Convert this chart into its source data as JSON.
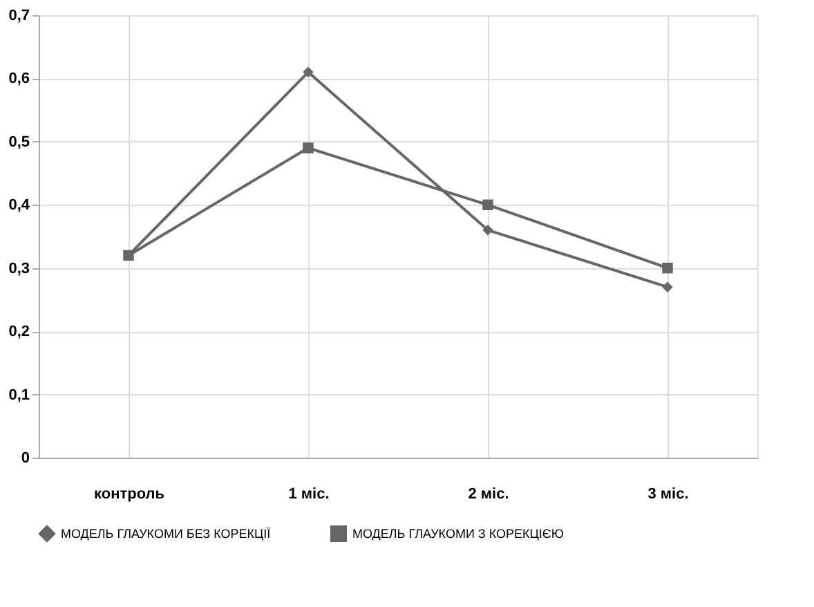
{
  "chart_data": {
    "type": "line",
    "categories": [
      "контроль",
      "1 міс.",
      "2 міс.",
      "3 міс."
    ],
    "series": [
      {
        "name": "МОДЕЛЬ ГЛАУКОМИ БЕЗ КОРЕКЦІЇ",
        "color": "#666666",
        "marker": "diamond",
        "values": [
          0.32,
          0.61,
          0.36,
          0.27
        ]
      },
      {
        "name": "МОДЕЛЬ ГЛАУКОМИ З КОРЕКЦІЄЮ",
        "color": "#666666",
        "marker": "square",
        "values": [
          0.32,
          0.49,
          0.4,
          0.3
        ]
      }
    ],
    "ylim": [
      0,
      0.7
    ],
    "yticks": [
      {
        "value": 0,
        "label": "0"
      },
      {
        "value": 0.1,
        "label": "0,1"
      },
      {
        "value": 0.2,
        "label": "0,2"
      },
      {
        "value": 0.3,
        "label": "0,3"
      },
      {
        "value": 0.4,
        "label": "0,4"
      },
      {
        "value": 0.5,
        "label": "0,5"
      },
      {
        "value": 0.6,
        "label": "0,6"
      },
      {
        "value": 0.7,
        "label": "0,7"
      }
    ],
    "grid": true,
    "legend": "bottom",
    "line_style": "solid"
  }
}
